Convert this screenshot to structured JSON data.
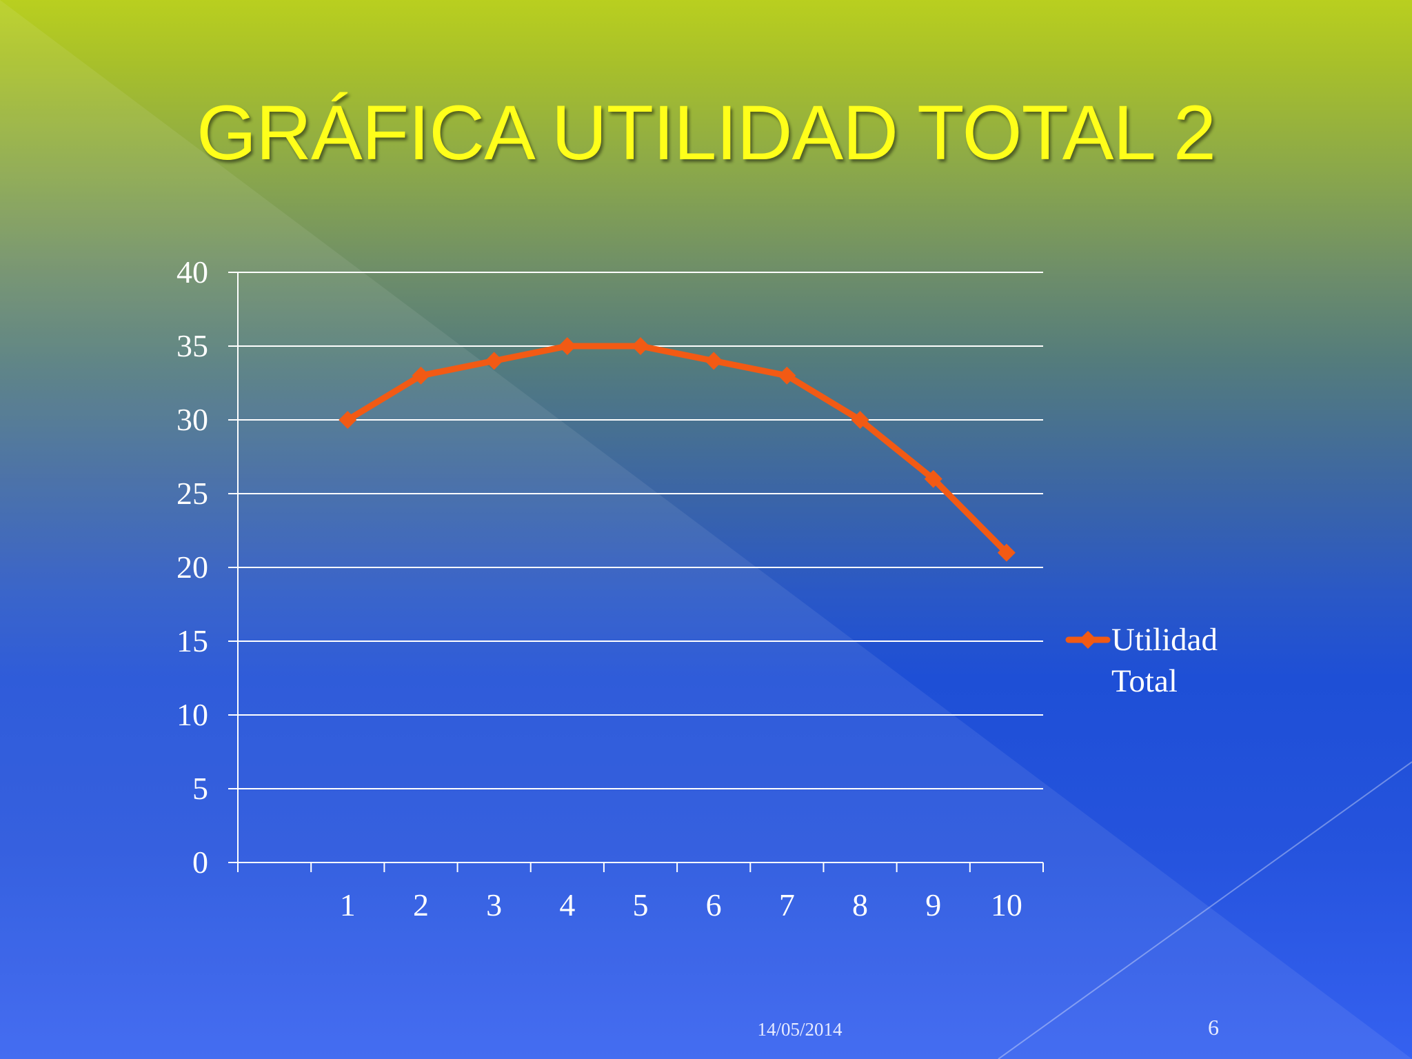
{
  "slide": {
    "title": "GRÁFICA UTILIDAD TOTAL 2",
    "date": "14/05/2014",
    "page_number": "6"
  },
  "colors": {
    "title": "#ffff1a",
    "series": "#f25a14",
    "axis": "#ffffff",
    "gridline": "#ffffff"
  },
  "chart_data": {
    "type": "line",
    "title": "",
    "xlabel": "",
    "ylabel": "",
    "categories": [
      "1",
      "2",
      "3",
      "4",
      "5",
      "6",
      "7",
      "8",
      "9",
      "10"
    ],
    "series": [
      {
        "name": "Utilidad Total",
        "marker": "diamond",
        "color": "#f25a14",
        "values": [
          30,
          33,
          34,
          35,
          35,
          34,
          33,
          30,
          26,
          21
        ]
      }
    ],
    "ylim": [
      0,
      40
    ],
    "yticks": [
      0,
      5,
      10,
      15,
      20,
      25,
      30,
      35,
      40
    ],
    "grid": true,
    "legend": {
      "placement": "right",
      "lines": [
        "Utilidad",
        "Total"
      ]
    }
  }
}
